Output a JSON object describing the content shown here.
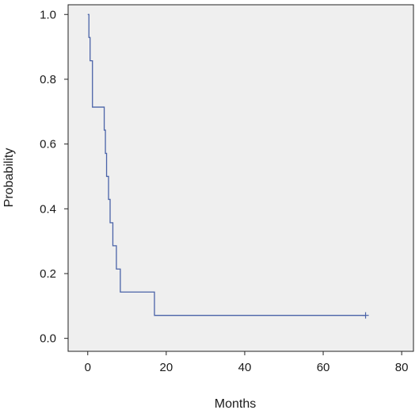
{
  "chart_data": {
    "type": "line",
    "title": "",
    "xlabel": "Months",
    "ylabel": "Probability",
    "xlim": [
      -5,
      83
    ],
    "ylim": [
      -0.04,
      1.03
    ],
    "x_ticks": [
      0,
      20,
      40,
      60,
      80
    ],
    "y_ticks": [
      0.0,
      0.2,
      0.4,
      0.6,
      0.8,
      1.0
    ],
    "x_tick_labels": [
      "0",
      "20",
      "40",
      "60",
      "80"
    ],
    "y_tick_labels": [
      "0.0",
      "0.2",
      "0.4",
      "0.6",
      "0.8",
      "1.0"
    ],
    "grid": false,
    "legend": "none",
    "step": true,
    "series": [
      {
        "x": [
          0,
          0.3,
          0.6,
          1.2,
          4.2,
          4.5,
          4.8,
          5.3,
          5.7,
          6.4,
          7.3,
          8.3,
          17.0,
          70.8
        ],
        "y": [
          1.0,
          0.929,
          0.857,
          0.714,
          0.643,
          0.571,
          0.5,
          0.429,
          0.357,
          0.286,
          0.214,
          0.143,
          0.071,
          0.071
        ],
        "censored": [
          {
            "x": 70.8,
            "y": 0.071
          }
        ]
      }
    ],
    "colors": {
      "line": "#4a63a8",
      "plot_background": "#efefef",
      "plot_border": "#222222"
    }
  }
}
